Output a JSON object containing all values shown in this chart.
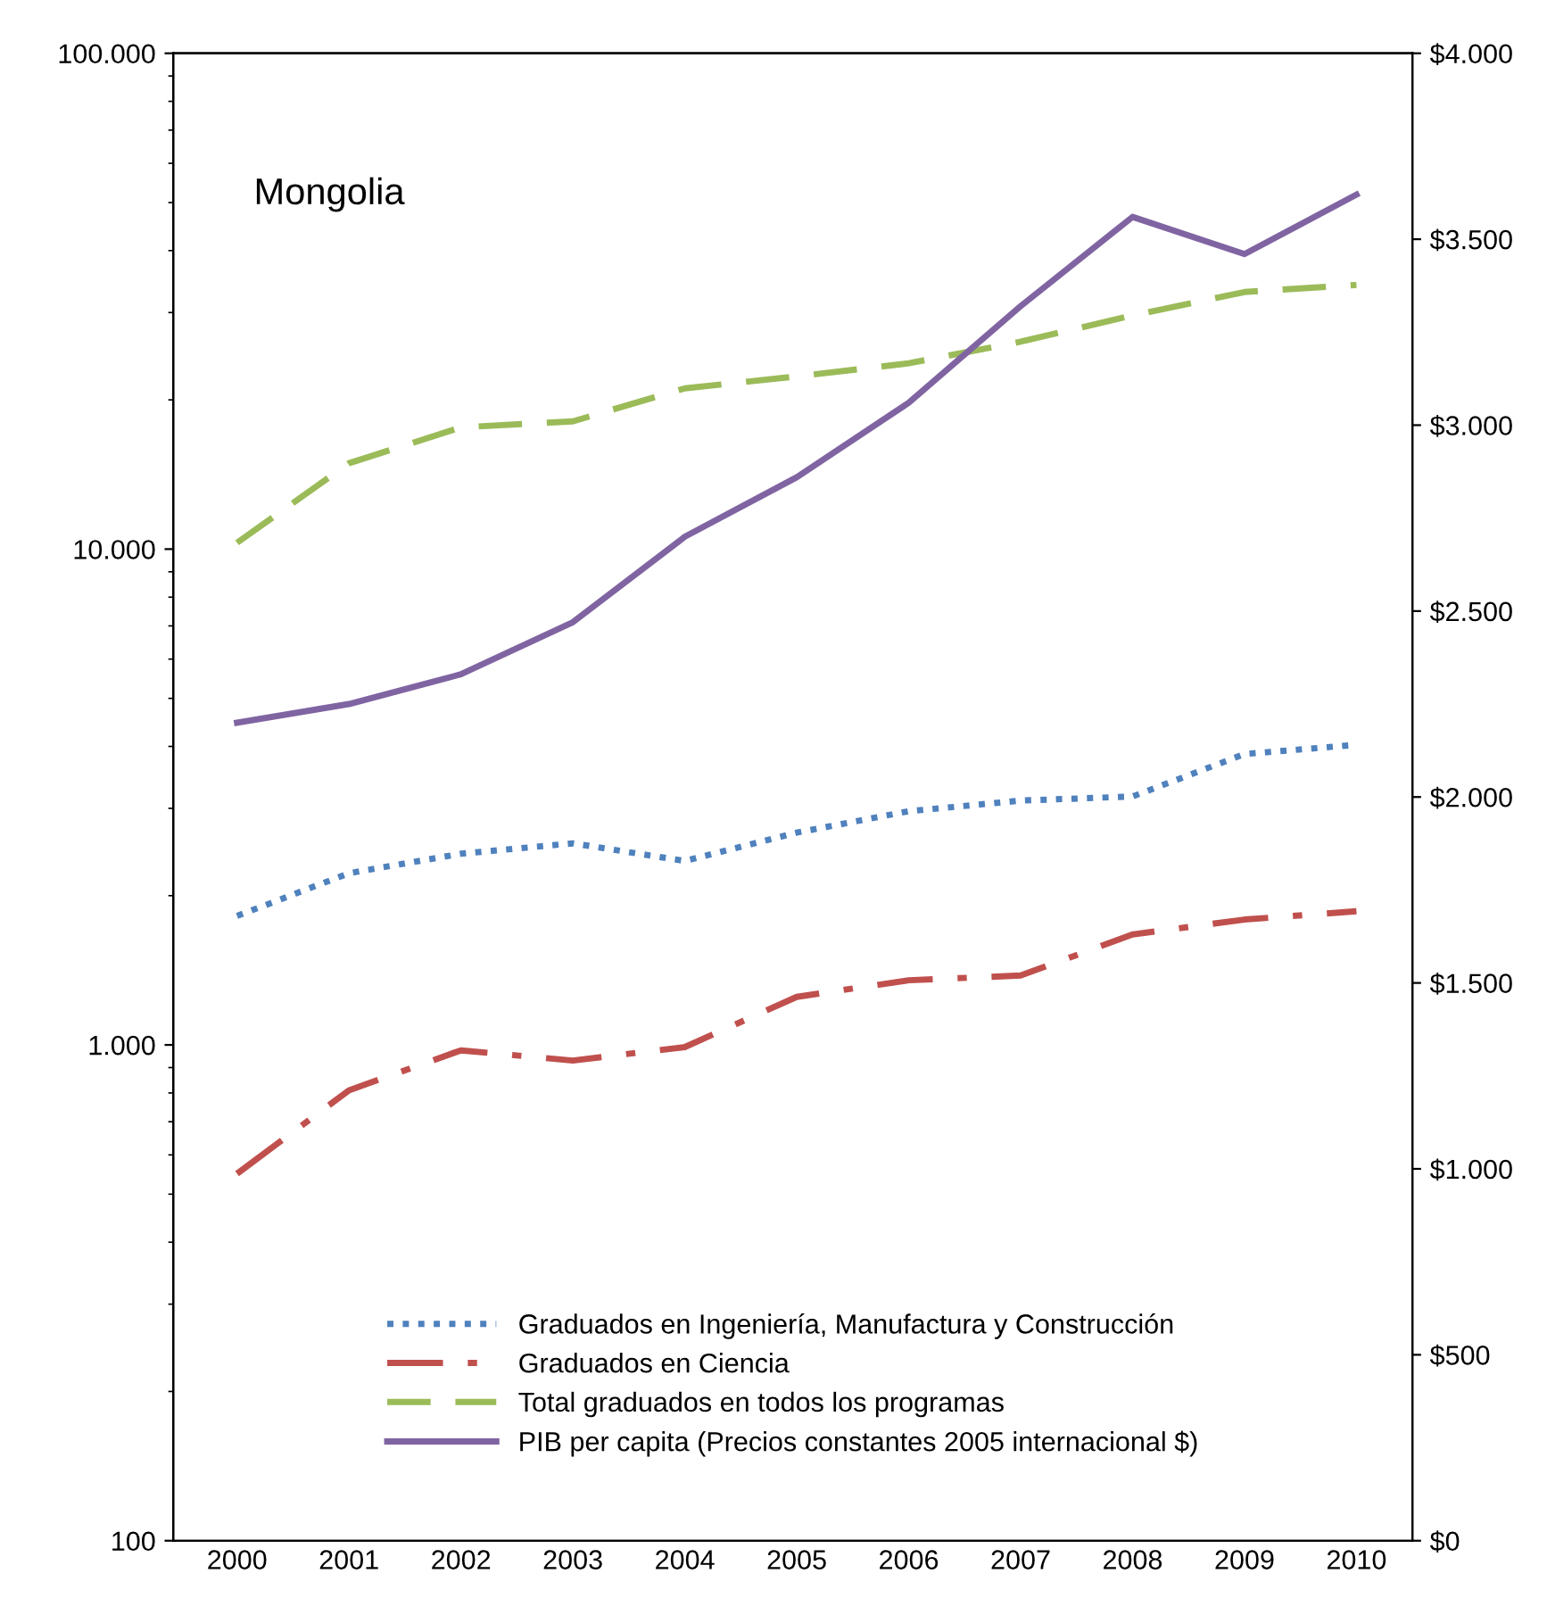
{
  "chart_data": {
    "type": "line",
    "title": "Mongolia",
    "categories": [
      "2000",
      "2001",
      "2002",
      "2003",
      "2004",
      "2005",
      "2006",
      "2007",
      "2008",
      "2009",
      "2010"
    ],
    "series": [
      {
        "name": "Graduados en Ingeniería, Manufactura y Construcción",
        "color": "#4f81bd",
        "line_style": "dotted",
        "values": [
          1820,
          2220,
          2430,
          2550,
          2350,
          2680,
          2960,
          3110,
          3170,
          3860,
          4030
        ]
      },
      {
        "name": "Graduados en Ciencia",
        "color": "#c0504d",
        "line_style": "dashdot",
        "values": [
          550,
          810,
          975,
          930,
          990,
          1250,
          1350,
          1380,
          1670,
          1790,
          1860
        ]
      },
      {
        "name": "Total graduados en todos los programas",
        "color": "#9bbb59",
        "line_style": "dashed",
        "values": [
          10300,
          14900,
          17600,
          18100,
          21100,
          22300,
          23700,
          26200,
          29600,
          33000,
          34100
        ]
      },
      {
        "name": "PIB per capita (Precios constantes 2005 internacional $)",
        "color": "#8064a2",
        "line_style": "solid",
        "axis": "y2",
        "values": [
          2200,
          2250,
          2330,
          2470,
          2700,
          2860,
          3060,
          3320,
          3560,
          3460,
          3620
        ]
      }
    ],
    "log": "y",
    "ylim": [
      100,
      100000
    ],
    "yticks": [
      {
        "value": 100,
        "label": "100"
      },
      {
        "value": 1000,
        "label": "1.000"
      },
      {
        "value": 10000,
        "label": "10.000"
      },
      {
        "value": 100000,
        "label": "100.000"
      }
    ],
    "y2lim": [
      0,
      4000
    ],
    "y2ticks": [
      {
        "value": 0,
        "label": "$0"
      },
      {
        "value": 500,
        "label": "$500"
      },
      {
        "value": 1000,
        "label": "$1.000"
      },
      {
        "value": 1500,
        "label": "$1.500"
      },
      {
        "value": 2000,
        "label": "$2.000"
      },
      {
        "value": 2500,
        "label": "$2.500"
      },
      {
        "value": 3000,
        "label": "$3.000"
      },
      {
        "value": 3500,
        "label": "$3.500"
      },
      {
        "value": 4000,
        "label": "$4.000"
      }
    ],
    "grid": false,
    "legend": "bottom",
    "marker": "none"
  }
}
